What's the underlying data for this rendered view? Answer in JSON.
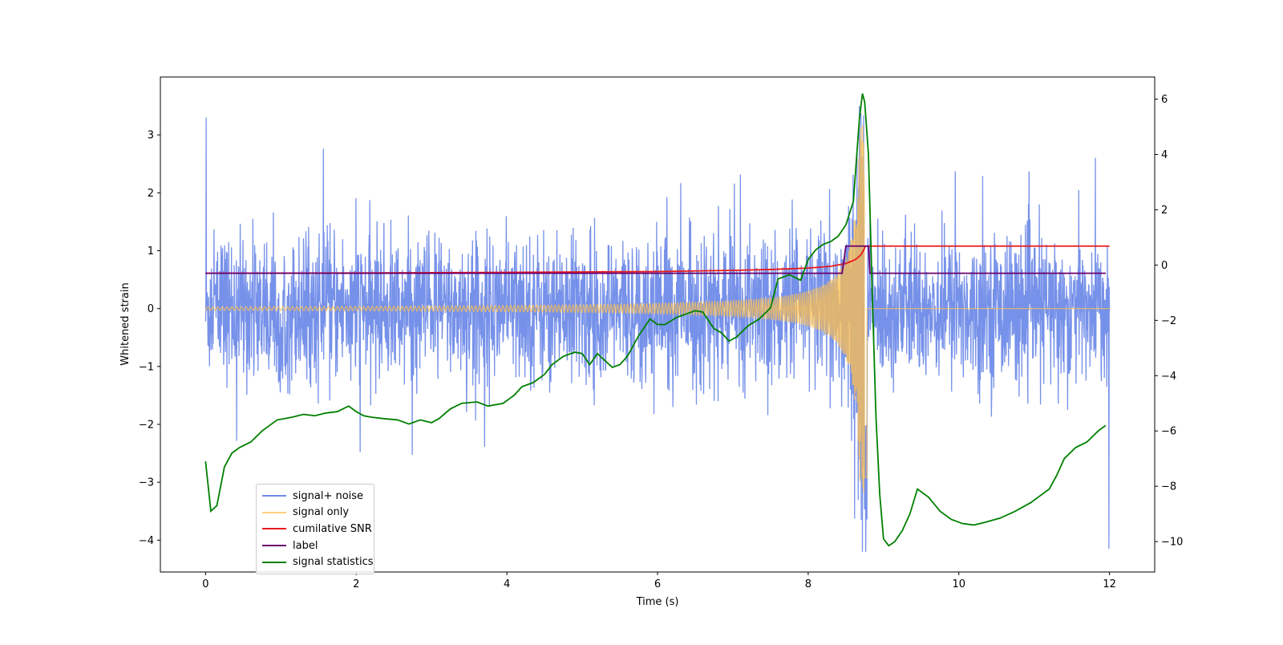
{
  "chart_data": {
    "type": "line",
    "title": "",
    "xlabel": "Time (s)",
    "ylabel": "Whitened strain",
    "y2label": "",
    "xlim": [
      -0.6,
      12.6
    ],
    "ylim": [
      -4.55,
      4.0
    ],
    "y2lim": [
      -11.1,
      6.8
    ],
    "x_ticks": [
      0,
      2,
      4,
      6,
      8,
      10,
      12
    ],
    "y_ticks": [
      -4,
      -3,
      -2,
      -1,
      0,
      1,
      2,
      3
    ],
    "y2_ticks": [
      -10,
      -8,
      -6,
      -4,
      -2,
      0,
      2,
      4,
      6
    ],
    "x_tick_labels": [
      "0",
      "2",
      "4",
      "6",
      "8",
      "10",
      "12"
    ],
    "y_tick_labels": [
      "−4",
      "−3",
      "−2",
      "−1",
      "0",
      "1",
      "2",
      "3"
    ],
    "y2_tick_labels": [
      "−10",
      "−8",
      "−6",
      "−4",
      "−2",
      "0",
      "2",
      "4",
      "6"
    ],
    "legend_position": "lower-left",
    "series": [
      {
        "name": "signal+ noise",
        "color": "#6f8be8",
        "axis": "left",
        "description_points": {
          "x": [
            0,
            12
          ],
          "typical_range": [
            -1.8,
            1.8
          ],
          "max": 3.5,
          "min": -4.2
        }
      },
      {
        "name": "signal only",
        "color": "#ffc04d",
        "axis": "left",
        "chirp": {
          "start": 0,
          "merger": 8.75,
          "end": 12,
          "peak_amplitude": 3.2
        }
      },
      {
        "name": "cumilative SNR",
        "color": "#e8191c",
        "axis": "left",
        "x": [
          0,
          2,
          4,
          6,
          7,
          7.5,
          8,
          8.3,
          8.5,
          8.6,
          8.65,
          8.7,
          8.74,
          8.76,
          8.8,
          12
        ],
        "y": [
          0.61,
          0.615,
          0.625,
          0.64,
          0.66,
          0.675,
          0.7,
          0.73,
          0.78,
          0.83,
          0.87,
          0.93,
          1.02,
          1.08,
          1.08,
          1.08
        ]
      },
      {
        "name": "label",
        "color": "#6a006e",
        "axis": "left",
        "x": [
          0,
          8.45,
          8.5,
          8.8,
          8.82,
          11.95
        ],
        "y": [
          0.61,
          0.61,
          1.08,
          1.08,
          0.61,
          0.61
        ]
      },
      {
        "name": "signal statistics",
        "color": "#008000",
        "axis": "right",
        "x": [
          0,
          0.07,
          0.15,
          0.25,
          0.35,
          0.45,
          0.6,
          0.75,
          0.85,
          0.95,
          1.05,
          1.15,
          1.3,
          1.45,
          1.6,
          1.75,
          1.9,
          1.95,
          2.0,
          2.1,
          2.2,
          2.35,
          2.55,
          2.7,
          2.85,
          3.0,
          3.1,
          3.25,
          3.4,
          3.6,
          3.75,
          3.95,
          4.1,
          4.2,
          4.35,
          4.5,
          4.6,
          4.75,
          4.9,
          5.0,
          5.1,
          5.2,
          5.3,
          5.4,
          5.5,
          5.6,
          5.75,
          5.9,
          6.0,
          6.1,
          6.25,
          6.4,
          6.5,
          6.6,
          6.75,
          6.85,
          6.95,
          7.05,
          7.2,
          7.35,
          7.5,
          7.6,
          7.75,
          7.9,
          8.0,
          8.1,
          8.2,
          8.3,
          8.4,
          8.5,
          8.6,
          8.68,
          8.72,
          8.75,
          8.8,
          8.85,
          8.9,
          8.95,
          9.0,
          9.07,
          9.15,
          9.25,
          9.35,
          9.45,
          9.6,
          9.75,
          9.9,
          10.05,
          10.2,
          10.35,
          10.55,
          10.75,
          10.95,
          11.05,
          11.2,
          11.3,
          11.4,
          11.55,
          11.7,
          11.85,
          11.95
        ],
        "y": [
          -7.1,
          -8.9,
          -8.7,
          -7.3,
          -6.8,
          -6.6,
          -6.4,
          -6.0,
          -5.8,
          -5.6,
          -5.55,
          -5.5,
          -5.4,
          -5.45,
          -5.35,
          -5.3,
          -5.1,
          -5.2,
          -5.3,
          -5.45,
          -5.5,
          -5.55,
          -5.6,
          -5.75,
          -5.6,
          -5.7,
          -5.55,
          -5.2,
          -5.0,
          -4.95,
          -5.1,
          -5.0,
          -4.7,
          -4.4,
          -4.25,
          -3.95,
          -3.6,
          -3.3,
          -3.15,
          -3.2,
          -3.6,
          -3.2,
          -3.45,
          -3.7,
          -3.6,
          -3.3,
          -2.55,
          -1.95,
          -2.15,
          -2.15,
          -1.9,
          -1.75,
          -1.65,
          -1.7,
          -2.3,
          -2.45,
          -2.75,
          -2.6,
          -2.2,
          -1.95,
          -1.55,
          -0.5,
          -0.35,
          -0.55,
          0.2,
          0.55,
          0.75,
          0.85,
          1.05,
          1.45,
          2.3,
          5.3,
          6.2,
          5.9,
          4.0,
          -1.0,
          -5.5,
          -8.3,
          -9.9,
          -10.15,
          -10.0,
          -9.6,
          -9.0,
          -8.1,
          -8.4,
          -8.9,
          -9.2,
          -9.35,
          -9.4,
          -9.3,
          -9.15,
          -8.9,
          -8.6,
          -8.4,
          -8.1,
          -7.6,
          -7.0,
          -6.6,
          -6.4,
          -6.0,
          -5.8
        ]
      }
    ]
  }
}
